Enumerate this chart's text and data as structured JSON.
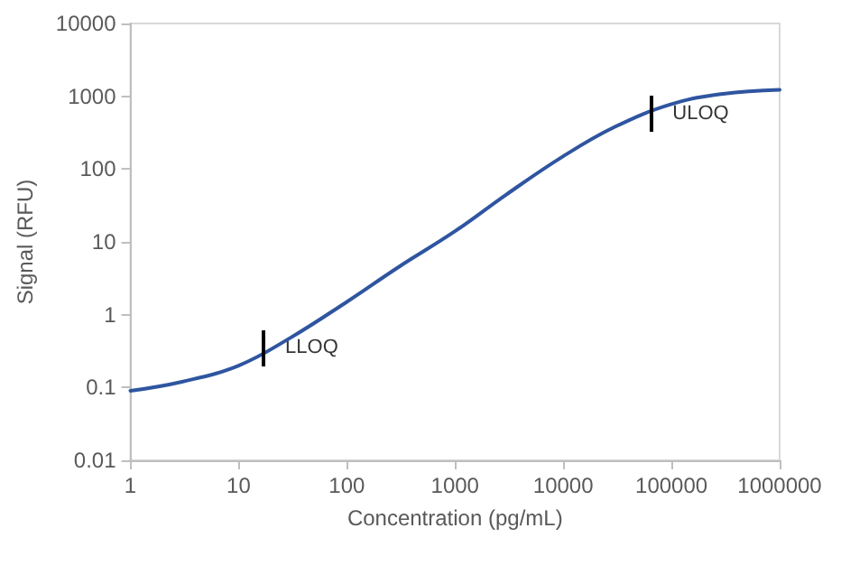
{
  "chart_data": {
    "type": "line",
    "xlabel": "Concentration (pg/mL)",
    "ylabel": "Signal (RFU)",
    "log": "xy",
    "x": [
      1,
      3,
      10,
      30,
      100,
      300,
      1000,
      3000,
      10000,
      30000,
      100000,
      300000,
      1000000
    ],
    "series": [
      {
        "color": "#2f55a0",
        "values": [
          0.09,
          0.12,
          0.2,
          0.48,
          1.5,
          4.5,
          14,
          45,
          150,
          380,
          780,
          1080,
          1230
        ]
      }
    ],
    "xlim": [
      1,
      1000000
    ],
    "xticks": [
      1,
      10,
      100,
      1000,
      10000,
      100000,
      1000000
    ],
    "ylim": [
      0.01,
      10000
    ],
    "yticks": [
      0.01,
      0.1,
      1,
      10,
      100,
      1000,
      10000
    ],
    "annotations": [
      {
        "text": "LLOQ",
        "x": 17,
        "y": 0.35
      },
      {
        "text": "ULOQ",
        "x": 64500,
        "y": 580
      }
    ],
    "grid": false,
    "marker": "none",
    "line_style": "solid"
  }
}
